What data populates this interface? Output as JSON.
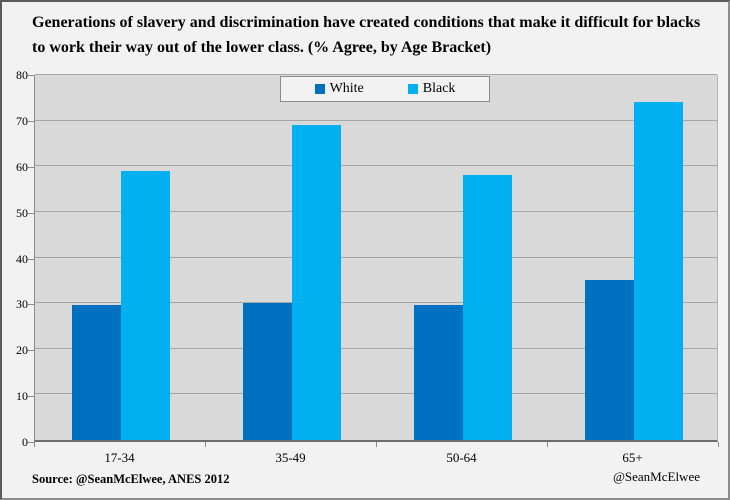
{
  "title": "Generations of slavery and discrimination have created conditions that make it difficult for blacks to work their way out of the lower class. (% Agree, by Age Bracket)",
  "legend": {
    "items": [
      {
        "label": "White",
        "color": "#0070C0"
      },
      {
        "label": "Black",
        "color": "#00B0F0"
      }
    ]
  },
  "footer": {
    "source": "Source: @SeanMcElwee,  ANES 2012",
    "credit": "@SeanMcElwee"
  },
  "chart_data": {
    "type": "bar",
    "title": "Generations of slavery and discrimination have created conditions that make it difficult for blacks to work their way out of the lower class. (% Agree, by Age Bracket)",
    "categories": [
      "17-34",
      "35-49",
      "50-64",
      "65+"
    ],
    "series": [
      {
        "name": "White",
        "color": "#0070C0",
        "values": [
          29.5,
          30,
          29.5,
          35
        ]
      },
      {
        "name": "Black",
        "color": "#00B0F0",
        "values": [
          59,
          69,
          58,
          74
        ]
      }
    ],
    "xlabel": "",
    "ylabel": "",
    "ylim": [
      0,
      80
    ],
    "ytick_interval": 10,
    "grid": true,
    "legend_position": "top-center",
    "colors": {
      "plot_bg": "#D9D9D9",
      "gridline": "#A6A6A6",
      "axis": "#6e6e6e",
      "page_bg": "#F2F2F2",
      "border": "#8c8c8c"
    }
  }
}
